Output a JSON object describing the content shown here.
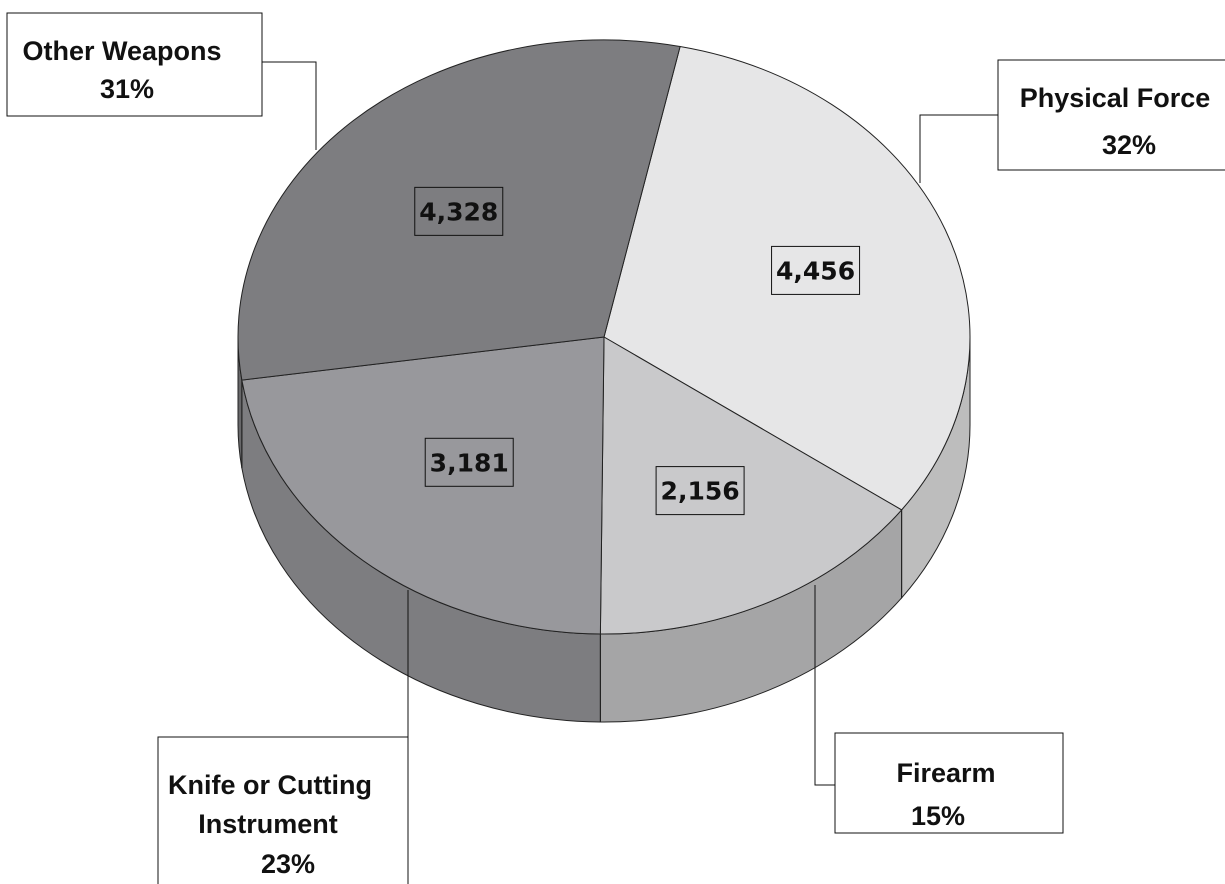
{
  "chart_data": {
    "type": "pie",
    "title": "",
    "style": "3d-exploded-none",
    "slices": [
      {
        "name": "Physical Force",
        "value": 4456,
        "value_label": "4,456",
        "percent_label": "32%",
        "color": "#e6e6e7"
      },
      {
        "name": "Firearm",
        "value": 2156,
        "value_label": "2,156",
        "percent_label": "15%",
        "color": "#c9c9cb"
      },
      {
        "name": "Knife or Cutting Instrument",
        "value": 3181,
        "value_label": "3,181",
        "percent_label": "23%",
        "color": "#98989c"
      },
      {
        "name": "Other Weapons",
        "value": 4328,
        "value_label": "4,328",
        "percent_label": "31%",
        "color": "#7d7d80"
      }
    ]
  }
}
